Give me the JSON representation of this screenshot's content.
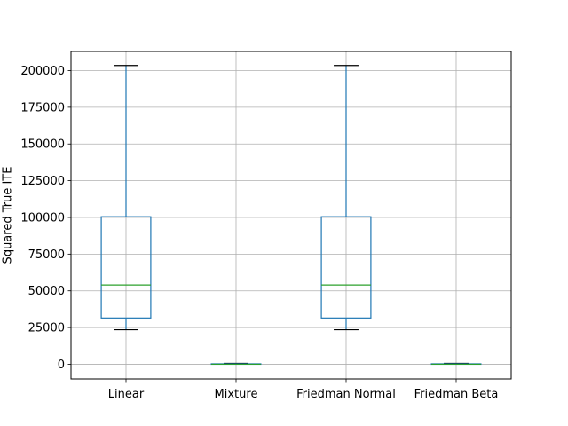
{
  "chart_data": {
    "type": "box",
    "ylabel": "Squared True ITE",
    "xlabel": "",
    "title": "",
    "ylim": [
      -10000,
      213000
    ],
    "grid": true,
    "yticks": [
      0,
      25000,
      50000,
      75000,
      100000,
      125000,
      150000,
      175000,
      200000
    ],
    "ytick_labels": [
      "0",
      "25000",
      "50000",
      "75000",
      "100000",
      "125000",
      "150000",
      "175000",
      "200000"
    ],
    "categories": [
      "Linear",
      "Mixture",
      "Friedman Normal",
      "Friedman Beta"
    ],
    "boxes": [
      {
        "name": "Linear",
        "whislo": 23500,
        "q1": 31500,
        "med": 54000,
        "q3": 100500,
        "whishi": 203500
      },
      {
        "name": "Mixture",
        "whislo": 0,
        "q1": 0,
        "med": 0,
        "q3": 300,
        "whishi": 600
      },
      {
        "name": "Friedman Normal",
        "whislo": 23500,
        "q1": 31500,
        "med": 54000,
        "q3": 100500,
        "whishi": 203500
      },
      {
        "name": "Friedman Beta",
        "whislo": 0,
        "q1": 0,
        "med": 0,
        "q3": 300,
        "whishi": 600
      }
    ],
    "colors": {
      "box": "#1f77b4",
      "median": "#2ca02c",
      "whisker_cap": "#000000",
      "grid": "#b0b0b0"
    }
  }
}
